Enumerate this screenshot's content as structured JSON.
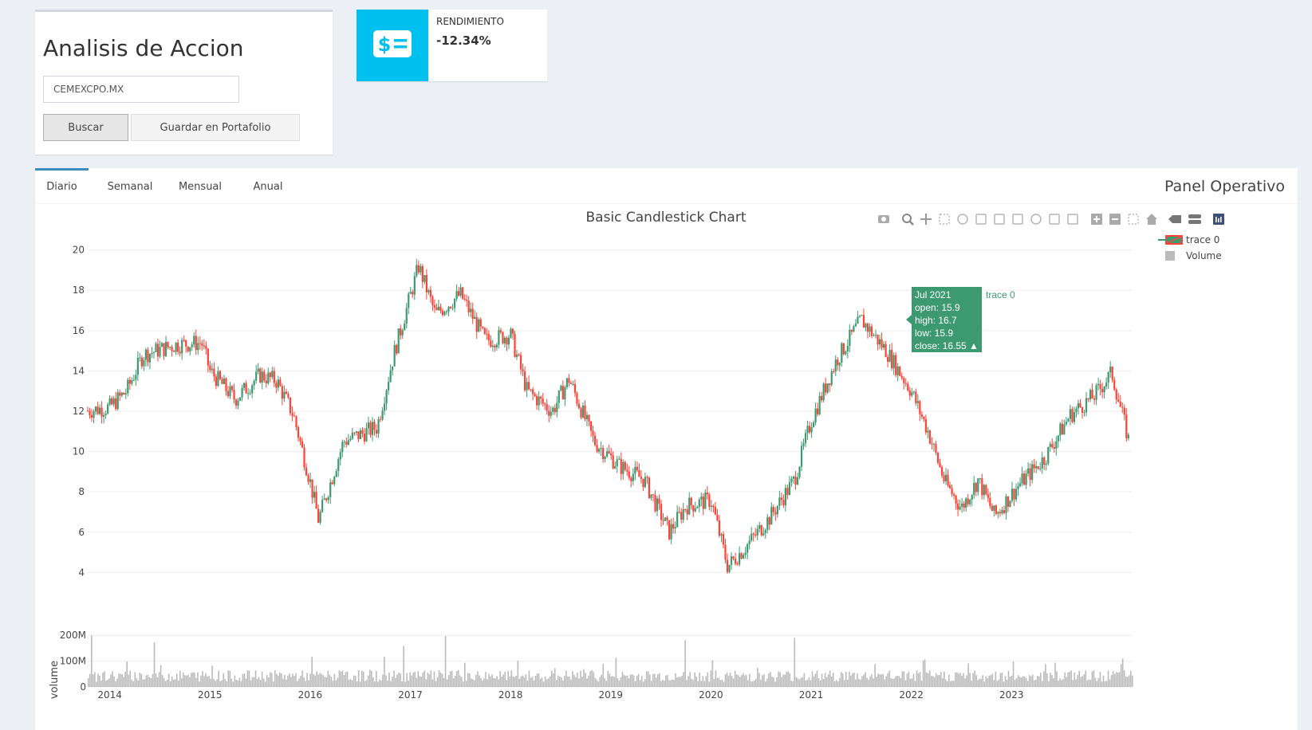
{
  "header": {
    "title": "Analisis de Accion",
    "ticker_value": "CEMEXCPO.MX",
    "buscar_label": "Buscar",
    "guardar_label": "Guardar en Portafolio"
  },
  "info_box": {
    "label": "RENDIMIENTO",
    "value": "-12.34%",
    "icon": "money-icon",
    "color": "#00c0ef"
  },
  "tabs": {
    "items": [
      {
        "label": "Diario"
      },
      {
        "label": "Semanal"
      },
      {
        "label": "Mensual"
      },
      {
        "label": "Anual"
      }
    ],
    "active": "Diario",
    "panel_title": "Panel Operativo"
  },
  "modebar": {
    "icons": [
      "camera-icon",
      "zoom-icon",
      "pan-icon",
      "box-select-icon",
      "lasso-icon",
      "draw-line-icon",
      "draw-open-path-icon",
      "draw-closed-path-icon",
      "draw-circle-icon",
      "draw-rect-icon",
      "erase-shape-icon",
      "zoom-in-icon",
      "zoom-out-icon",
      "autoscale-icon",
      "reset-axes-icon",
      "hover-closest-icon",
      "hover-compare-icon",
      "plotly-logo-icon"
    ]
  },
  "chart_data": {
    "type": "candlestick",
    "title": "Basic Candlestick Chart",
    "x_ticks": [
      "2014",
      "2015",
      "2016",
      "2017",
      "2018",
      "2019",
      "2020",
      "2021",
      "2022",
      "2023"
    ],
    "y_ticks": [
      4,
      6,
      8,
      10,
      12,
      14,
      16,
      18,
      20
    ],
    "ylim": [
      3.5,
      20.5
    ],
    "increasing_color": "#3D9970",
    "decreasing_color": "#FF4136",
    "legend": [
      "trace 0",
      "Volume"
    ],
    "legend_position": "top-right",
    "price_series_approx": [
      {
        "x": "2013-10",
        "close": 12.0
      },
      {
        "x": "2014-01",
        "close": 12.2
      },
      {
        "x": "2014-03",
        "close": 13.0
      },
      {
        "x": "2014-05",
        "close": 14.8
      },
      {
        "x": "2014-09",
        "close": 15.3
      },
      {
        "x": "2014-12",
        "close": 15.4
      },
      {
        "x": "2015-01",
        "close": 14.0
      },
      {
        "x": "2015-04",
        "close": 12.6
      },
      {
        "x": "2015-07",
        "close": 13.8
      },
      {
        "x": "2015-09",
        "close": 13.5
      },
      {
        "x": "2015-11",
        "close": 11.8
      },
      {
        "x": "2016-01",
        "close": 8.5
      },
      {
        "x": "2016-02",
        "close": 6.6
      },
      {
        "x": "2016-05",
        "close": 10.5
      },
      {
        "x": "2016-09",
        "close": 11.2
      },
      {
        "x": "2016-11",
        "close": 14.8
      },
      {
        "x": "2017-02",
        "close": 19.2
      },
      {
        "x": "2017-04",
        "close": 16.8
      },
      {
        "x": "2017-07",
        "close": 17.8
      },
      {
        "x": "2017-10",
        "close": 15.5
      },
      {
        "x": "2018-01",
        "close": 15.8
      },
      {
        "x": "2018-03",
        "close": 13.0
      },
      {
        "x": "2018-06",
        "close": 12.0
      },
      {
        "x": "2018-08",
        "close": 13.6
      },
      {
        "x": "2018-11",
        "close": 10.5
      },
      {
        "x": "2019-02",
        "close": 9.3
      },
      {
        "x": "2019-05",
        "close": 8.6
      },
      {
        "x": "2019-08",
        "close": 6.0
      },
      {
        "x": "2019-10",
        "close": 7.3
      },
      {
        "x": "2020-01",
        "close": 7.6
      },
      {
        "x": "2020-03",
        "close": 4.3
      },
      {
        "x": "2020-05",
        "close": 5.2
      },
      {
        "x": "2020-08",
        "close": 6.7
      },
      {
        "x": "2020-11",
        "close": 8.6
      },
      {
        "x": "2021-01",
        "close": 11.5
      },
      {
        "x": "2021-04",
        "close": 14.5
      },
      {
        "x": "2021-07",
        "close": 16.55
      },
      {
        "x": "2021-10",
        "close": 15.0
      },
      {
        "x": "2022-01",
        "close": 13.0
      },
      {
        "x": "2022-03",
        "close": 11.0
      },
      {
        "x": "2022-05",
        "close": 8.5
      },
      {
        "x": "2022-07",
        "close": 7.2
      },
      {
        "x": "2022-09",
        "close": 8.6
      },
      {
        "x": "2022-11",
        "close": 6.8
      },
      {
        "x": "2023-02",
        "close": 8.4
      },
      {
        "x": "2023-05",
        "close": 9.7
      },
      {
        "x": "2023-08",
        "close": 11.8
      },
      {
        "x": "2023-11",
        "close": 12.8
      },
      {
        "x": "2024-01",
        "close": 13.9
      },
      {
        "x": "2024-03",
        "close": 10.6
      }
    ],
    "volume": {
      "ylabel": "volume",
      "y_ticks": [
        "0",
        "100M",
        "200M"
      ],
      "color": "#bbbbbb"
    },
    "tooltip": {
      "date": "Jul 2021",
      "open": "open: 15.9",
      "high": "high: 16.7",
      "low": "low: 15.9",
      "close": "close: 16.55 ▲",
      "trace": "trace 0"
    }
  }
}
